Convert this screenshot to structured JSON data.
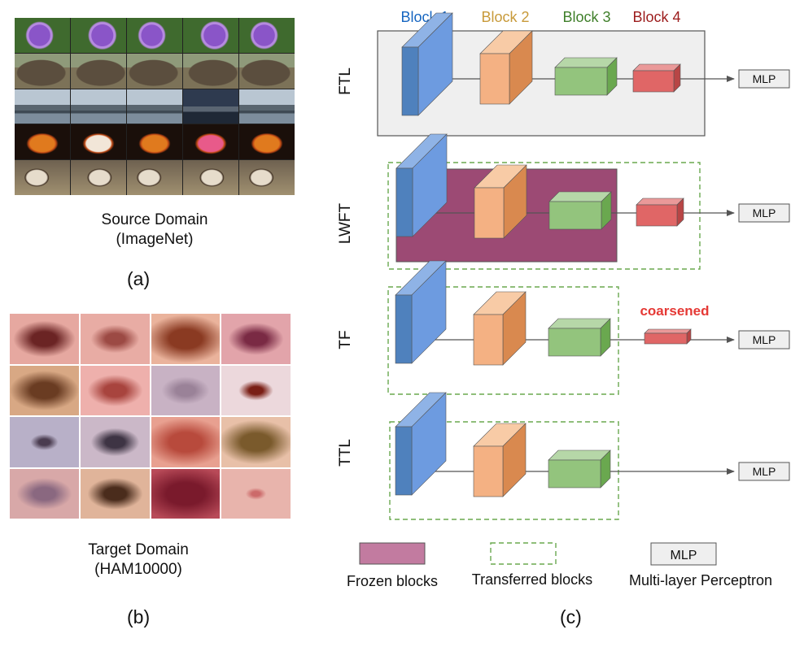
{
  "panel_a": {
    "caption_line1": "Source Domain",
    "caption_line2": "(ImageNet)",
    "letter": "(a)",
    "rows": [
      {
        "subject": "flower",
        "bg": "#3f6a2e",
        "fg": "#8a55c8"
      },
      {
        "subject": "elephant",
        "bg": "#7c7258",
        "fg": "#5b4e3e"
      },
      {
        "subject": "aircraft carrier",
        "bg": "#9fb0c0",
        "fg": "#4a5563"
      },
      {
        "subject": "jack-o-lantern",
        "bg": "#1a0f0a",
        "fg": "#e07a1e"
      },
      {
        "subject": "dog",
        "bg": "#6e6150",
        "fg": "#e6dccb"
      }
    ]
  },
  "panel_b": {
    "caption_line1": "Target Domain",
    "caption_line2": "(HAM10000)",
    "letter": "(b)",
    "lesions": [
      {
        "skin": "#e6a8a0",
        "lesion": "#6b2424",
        "size": 0.45
      },
      {
        "skin": "#e8aca4",
        "lesion": "#9c4a44",
        "size": 0.35
      },
      {
        "skin": "#eab39c",
        "lesion": "#8a3a22",
        "size": 0.6
      },
      {
        "skin": "#e2a4aa",
        "lesion": "#7a2a44",
        "size": 0.4
      },
      {
        "skin": "#d8a884",
        "lesion": "#6a3c22",
        "size": 0.5
      },
      {
        "skin": "#eeb0ac",
        "lesion": "#a8443e",
        "size": 0.4
      },
      {
        "skin": "#c8b2c4",
        "lesion": "#9a8298",
        "size": 0.35
      },
      {
        "skin": "#ecd8dc",
        "lesion": "#7a1f16",
        "size": 0.25
      },
      {
        "skin": "#b8b0c8",
        "lesion": "#4a3c50",
        "size": 0.2
      },
      {
        "skin": "#cbb8c8",
        "lesion": "#3e3444",
        "size": 0.35
      },
      {
        "skin": "#e8a090",
        "lesion": "#b84a3c",
        "size": 0.6
      },
      {
        "skin": "#e8c0a8",
        "lesion": "#7a5a2c",
        "size": 0.55
      },
      {
        "skin": "#d8a8a8",
        "lesion": "#8a6880",
        "size": 0.4
      },
      {
        "skin": "#e0b49a",
        "lesion": "#4a2c1c",
        "size": 0.4
      },
      {
        "skin": "#b84a58",
        "lesion": "#7a1a2c",
        "size": 0.7
      },
      {
        "skin": "#e8b4ac",
        "lesion": "#cc6a6a",
        "size": 0.15
      }
    ]
  },
  "panel_c": {
    "letter": "(c)",
    "block_labels": [
      {
        "text": "Block 1",
        "color": "#1565c0"
      },
      {
        "text": "Block 2",
        "color": "#c89a3a"
      },
      {
        "text": "Block 3",
        "color": "#3f7f2a"
      },
      {
        "text": "Block 4",
        "color": "#9c1c1c"
      }
    ],
    "rows": [
      {
        "label": "FTL",
        "mlp": "MLP",
        "frame": "solid",
        "frozen": false,
        "block4": "full"
      },
      {
        "label": "LWFT",
        "mlp": "MLP",
        "frame": "dashed",
        "frozen": true,
        "block4": "full"
      },
      {
        "label": "TF",
        "mlp": "MLP",
        "frame": "dashed",
        "frozen": false,
        "block4": "coarsened",
        "note": "coarsened",
        "note_color": "#e53935"
      },
      {
        "label": "TTL",
        "mlp": "MLP",
        "frame": "dashed",
        "frozen": false,
        "block4": "none"
      }
    ],
    "legend": {
      "frozen_label": "Frozen blocks",
      "transferred_label": "Transferred blocks",
      "mlp_box": "MLP",
      "mlp_label": "Multi-layer Perceptron"
    },
    "colors": {
      "block1_front": "#4f81bd",
      "block1_top": "#8fb3e6",
      "block1_side": "#6d9be0",
      "block2_front": "#f4b183",
      "block2_top": "#f8cba6",
      "block2_side": "#d9894f",
      "block3_front": "#93c47d",
      "block3_top": "#b6d7a8",
      "block3_side": "#6aa84f",
      "block4_front": "#e06666",
      "block4_top": "#ea9999",
      "block4_side": "#b84545",
      "frozen": "#9c4a74",
      "frozen_legend": "#c27ba0",
      "dashed": "#6aa84f",
      "ftl_bg": "#efefef",
      "mlp_bg": "#efefef"
    }
  }
}
